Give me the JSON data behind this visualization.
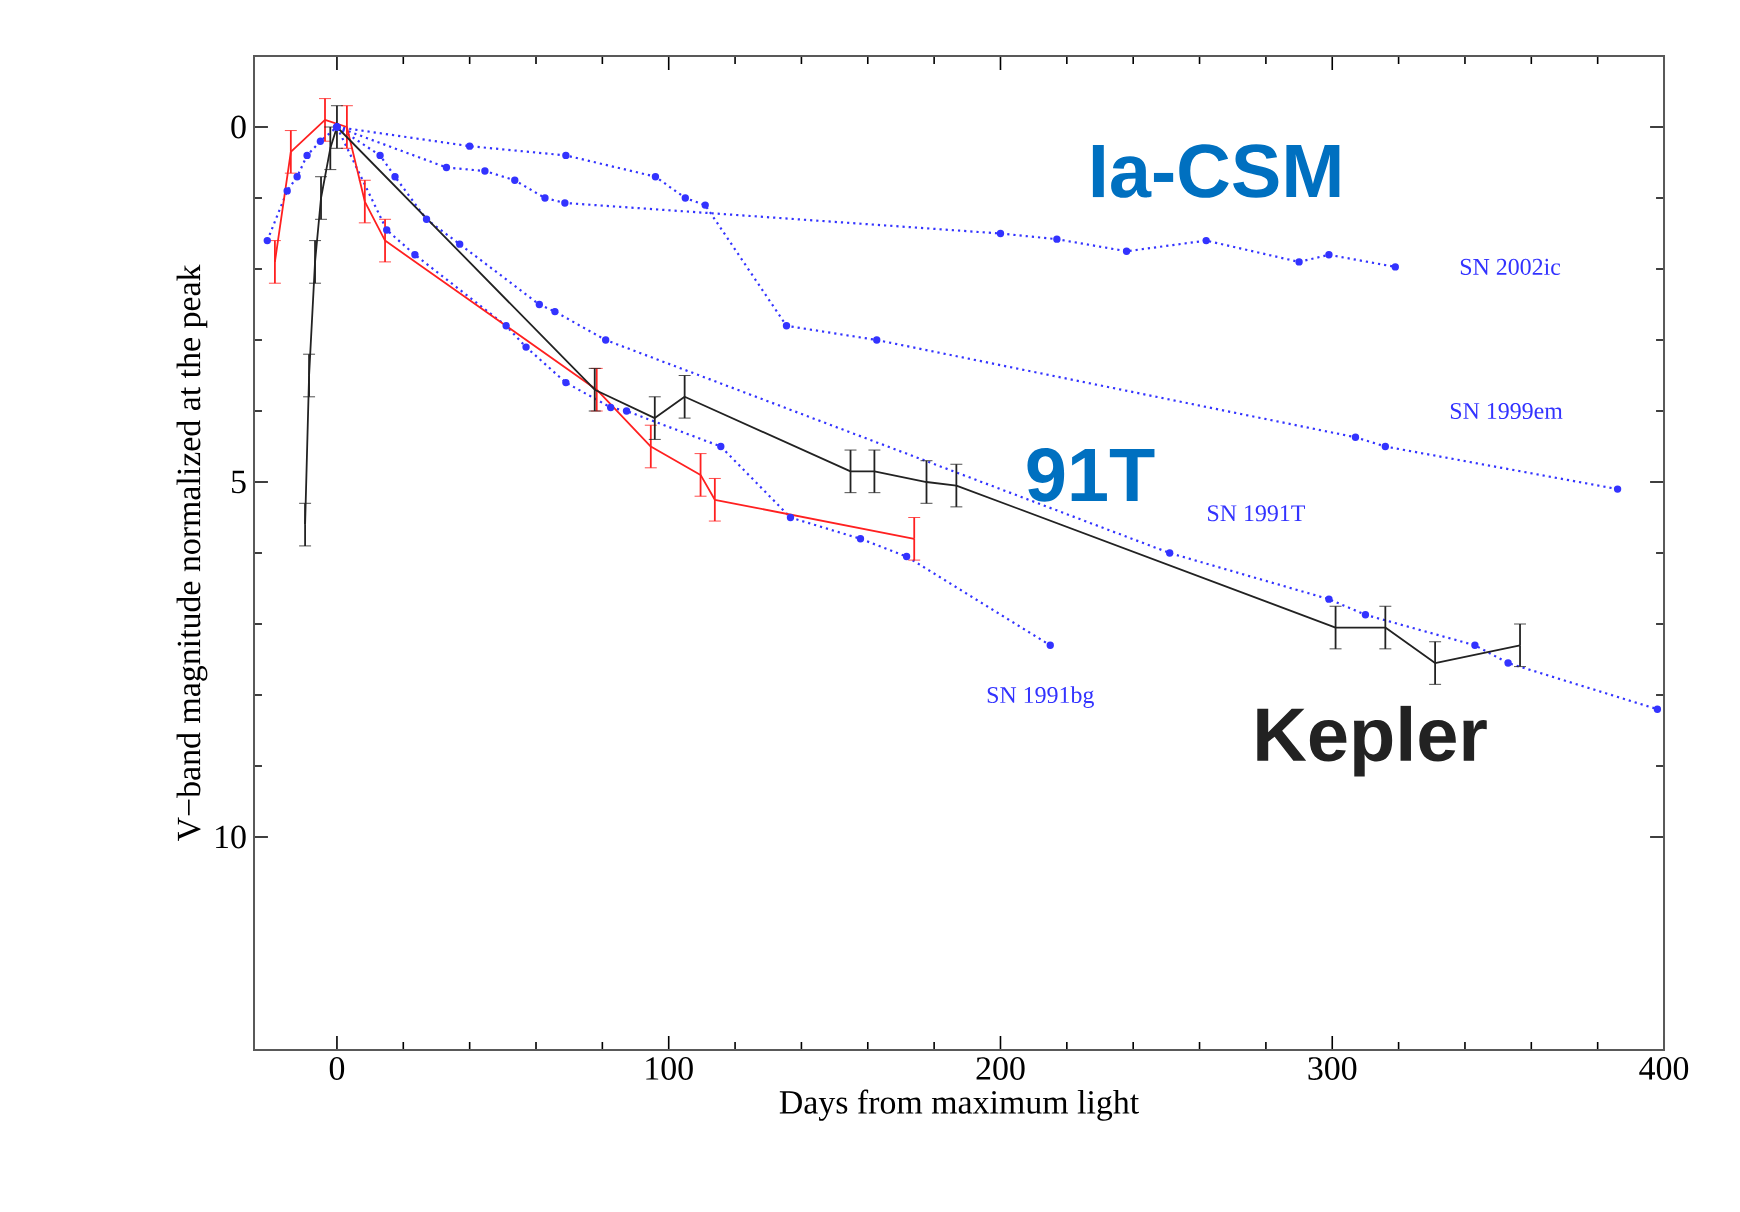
{
  "chart_data": {
    "type": "line",
    "xlabel": "Days from maximum light",
    "ylabel": "V−band magnitude normalized at the peak",
    "annotations": [
      "Ia-CSM",
      "91T"
    ],
    "xlim": [
      -25,
      400
    ],
    "ylim": [
      13,
      -1
    ],
    "xticks": [
      0,
      100,
      200,
      300,
      400
    ],
    "yticks": [
      0,
      5,
      10
    ],
    "series": [
      {
        "name": "SN 2002ic",
        "color": "#3333ff",
        "line_style": "dotted",
        "marker": "circle",
        "x": [
          0,
          33,
          44.6,
          53.6,
          62.7,
          68.7,
          200,
          217,
          238,
          262,
          290,
          299,
          319
        ],
        "values": [
          0,
          0.57,
          0.62,
          0.75,
          1.0,
          1.07,
          1.5,
          1.58,
          1.75,
          1.6,
          1.9,
          1.8,
          1.97
        ]
      },
      {
        "name": "SN 1999em",
        "color": "#3333ff",
        "line_style": "dotted",
        "marker": "circle",
        "x": [
          0,
          40,
          69,
          96,
          105,
          111,
          135.5,
          162.7,
          307,
          316,
          386
        ],
        "values": [
          0,
          0.27,
          0.4,
          0.7,
          1.0,
          1.1,
          2.8,
          3.0,
          4.37,
          4.5,
          5.1
        ]
      },
      {
        "name": "SN 1991T",
        "color": "#3333ff",
        "line_style": "dotted",
        "marker": "circle",
        "x": [
          -21,
          -15,
          -12,
          -9,
          -5,
          0,
          13,
          17.5,
          27,
          37,
          61,
          65.7,
          81,
          251,
          299,
          310,
          343,
          353,
          398
        ],
        "values": [
          1.6,
          0.9,
          0.7,
          0.4,
          0.2,
          0,
          0.4,
          0.7,
          1.3,
          1.65,
          2.5,
          2.6,
          3.0,
          6.0,
          6.65,
          6.87,
          7.3,
          7.55,
          8.2
        ]
      },
      {
        "name": "SN 1991bg",
        "color": "#3333ff",
        "line_style": "dotted",
        "marker": "circle",
        "x": [
          0,
          15,
          23.5,
          51,
          57,
          69,
          82.5,
          87.3,
          115.7,
          136.7,
          157.8,
          171.7,
          215
        ],
        "values": [
          0,
          1.45,
          1.8,
          2.8,
          3.1,
          3.6,
          3.95,
          4.0,
          4.5,
          5.5,
          5.8,
          6.05,
          7.3
        ]
      },
      {
        "color": "#ff2020",
        "line_style": "solid",
        "marker": "none",
        "x": [
          -18.7,
          -13.9,
          -3.6,
          3,
          8.4,
          14.5,
          78.3,
          94.6,
          109.6,
          113.9,
          174
        ],
        "values": [
          1.9,
          0.35,
          -0.1,
          0,
          1.05,
          1.6,
          3.7,
          4.5,
          4.9,
          5.25,
          5.8
        ],
        "errors": [
          0.3,
          0.3,
          0.3,
          0.3,
          0.3,
          0.3,
          0.3,
          0.3,
          0.3,
          0.3,
          0.3
        ]
      },
      {
        "name": "Kepler",
        "color": "#222222",
        "line_style": "solid",
        "marker": "none",
        "x": [
          -9.6,
          -8.4,
          -6.6,
          -4.8,
          -2,
          0,
          77.7,
          95.8,
          104.8,
          154.8,
          162,
          177.7,
          186.7,
          301,
          316,
          331,
          356.6
        ],
        "values": [
          5.6,
          3.5,
          1.9,
          1.0,
          0.3,
          0,
          3.7,
          4.1,
          3.8,
          4.85,
          4.85,
          5.0,
          5.05,
          7.05,
          7.05,
          7.55,
          7.3
        ],
        "errors": [
          0.3,
          0.3,
          0.3,
          0.3,
          0.3,
          0.3,
          0.3,
          0.3,
          0.3,
          0.3,
          0.3,
          0.3,
          0.3,
          0.3,
          0.3,
          0.3,
          0.3
        ]
      }
    ]
  }
}
